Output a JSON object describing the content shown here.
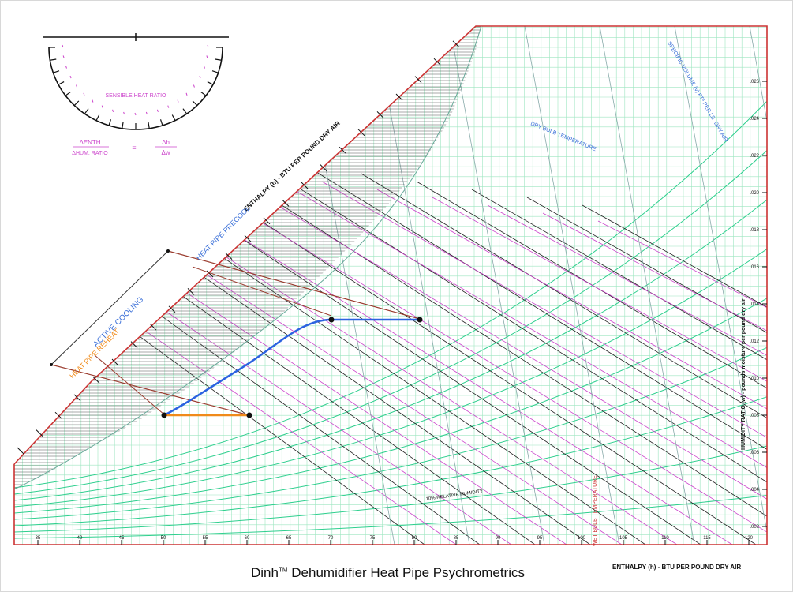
{
  "title": {
    "brand": "Dinh",
    "tm": "TM",
    "rest": "Dehumidifier Heat Pipe Psychrometrics"
  },
  "labels": {
    "enthalpy_diag": "ENTHALPY (h) - BTU PER POUND DRY AIR",
    "enthalpy_bottom": "ENTHALPY (h) - BTU PER POUND DRY AIR",
    "humidity_ratio": "HUMIDITY RATIO (w) - pounds moisture per pound dry air",
    "specific_volume": "SPECIFIC VOLUME (v) FT³ PER LB. DRY AIR",
    "wet_bulb": "WET BULB TEMPERATURE",
    "dry_bulb": "DRY BULB TEMPERATURE",
    "sensible_heat_ratio": "SENSIBLE HEAT RATIO",
    "relative_humidity": "10% RELATIVE HUMIDITY",
    "active_cooling": "ACTIVE COOLING",
    "heat_pipe_precool": "HEAT PIPE PRECOOL",
    "heat_pipe_reheat": "HEAT PIPE REHEAT",
    "formula_left_top": "ΔENTH",
    "formula_left_bottom": "ΔHUM. RATIO",
    "formula_eq": "=",
    "formula_right_top": "Δh",
    "formula_right_bottom": "Δw"
  },
  "humidity_ticks": [
    ".026",
    ".024",
    ".022",
    ".020",
    ".018",
    ".016",
    ".014",
    ".012",
    ".010",
    ".008",
    ".006",
    ".004",
    ".002"
  ],
  "dry_bulb_ticks": [
    "35",
    "40",
    "45",
    "50",
    "55",
    "60",
    "65",
    "70",
    "75",
    "80",
    "85",
    "90",
    "95",
    "100",
    "105",
    "110",
    "115",
    "120"
  ],
  "process": {
    "points": [
      {
        "name": "outside-air"
      },
      {
        "name": "precooled-air"
      },
      {
        "name": "cooled-air"
      },
      {
        "name": "reheated-air"
      }
    ]
  },
  "colors": {
    "grid": "#9ee6c0",
    "curve": "#2ecf8e",
    "magenta": "#cc44cc",
    "dark": "#222222",
    "blue_text": "#3a6fd8",
    "red": "#cc3333",
    "process_blue": "#2b62e0",
    "orange": "#f08a1a",
    "brown": "#9a3b2e"
  }
}
